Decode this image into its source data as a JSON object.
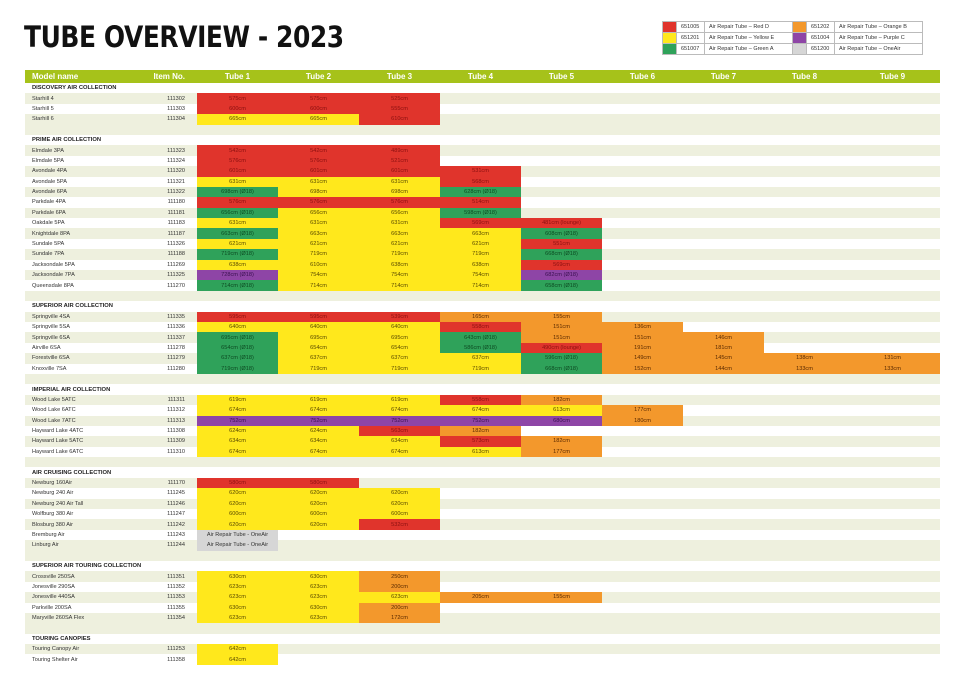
{
  "title": "TUBE OVERVIEW - 2023",
  "colors": {
    "R": "#e0342c",
    "Y": "#ffe81c",
    "G": "#2fa25a",
    "O": "#f3982c",
    "P": "#8e45a6",
    "A": "#d6d6d6"
  },
  "text_colors": {
    "R": "#8a1010",
    "Y": "#5a4a00",
    "G": "#0d4a22",
    "O": "#5a2a00",
    "P": "#3a1050",
    "A": "#333333"
  },
  "legend": [
    {
      "color": "R",
      "code": "651005",
      "label": "Air Repair Tube – Red D"
    },
    {
      "color": "O",
      "code": "651202",
      "label": "Air Repair Tube – Orange B"
    },
    {
      "color": "Y",
      "code": "651201",
      "label": "Air Repair Tube – Yellow E"
    },
    {
      "color": "P",
      "code": "651004",
      "label": "Air Repair Tube – Purple C"
    },
    {
      "color": "G",
      "code": "651007",
      "label": "Air Repair Tube – Green A"
    },
    {
      "color": "A",
      "code": "651200",
      "label": "Air Repair Tube – OneAir"
    }
  ],
  "header": {
    "model": "Model name",
    "item": "Item No.",
    "tubes": [
      "Tube 1",
      "Tube 2",
      "Tube 3",
      "Tube 4",
      "Tube 5",
      "Tube 6",
      "Tube 7",
      "Tube 8",
      "Tube 9"
    ]
  },
  "sections": [
    {
      "title": "DISCOVERY AIR COLLECTION",
      "rows": [
        {
          "name": "Starhill 4",
          "item": "111302",
          "tubes": [
            [
              "575cm",
              "R"
            ],
            [
              "575cm",
              "R"
            ],
            [
              "525cm",
              "R"
            ]
          ]
        },
        {
          "name": "Starhill 5",
          "item": "111303",
          "tubes": [
            [
              "600cm",
              "R"
            ],
            [
              "600cm",
              "R"
            ],
            [
              "555cm",
              "R"
            ]
          ]
        },
        {
          "name": "Starhill 6",
          "item": "111304",
          "tubes": [
            [
              "665cm",
              "Y"
            ],
            [
              "665cm",
              "Y"
            ],
            [
              "610cm",
              "R"
            ]
          ]
        }
      ]
    },
    {
      "title": "PRIME AIR COLLECTION",
      "rows": [
        {
          "name": "Elmdale 3PA",
          "item": "111323",
          "tubes": [
            [
              "542cm",
              "R"
            ],
            [
              "542cm",
              "R"
            ],
            [
              "489cm",
              "R"
            ]
          ]
        },
        {
          "name": "Elmdale 5PA",
          "item": "111324",
          "tubes": [
            [
              "576cm",
              "R"
            ],
            [
              "576cm",
              "R"
            ],
            [
              "521cm",
              "R"
            ]
          ]
        },
        {
          "name": "Avondale 4PA",
          "item": "111320",
          "tubes": [
            [
              "601cm",
              "R"
            ],
            [
              "601cm",
              "R"
            ],
            [
              "601cm",
              "R"
            ],
            [
              "531cm",
              "R"
            ]
          ]
        },
        {
          "name": "Avondale 5PA",
          "item": "111321",
          "tubes": [
            [
              "631cm",
              "Y"
            ],
            [
              "631cm",
              "Y"
            ],
            [
              "631cm",
              "Y"
            ],
            [
              "568cm",
              "R"
            ]
          ]
        },
        {
          "name": "Avondale 6PA",
          "item": "111322",
          "tubes": [
            [
              "698cm (Ø18)",
              "G"
            ],
            [
              "698cm",
              "Y"
            ],
            [
              "698cm",
              "Y"
            ],
            [
              "628cm (Ø18)",
              "G"
            ]
          ]
        },
        {
          "name": "Parkdale 4PA",
          "item": "111180",
          "tubes": [
            [
              "576cm",
              "R"
            ],
            [
              "576cm",
              "R"
            ],
            [
              "576cm",
              "R"
            ],
            [
              "514cm",
              "R"
            ]
          ]
        },
        {
          "name": "Parkdale 6PA",
          "item": "111181",
          "tubes": [
            [
              "656cm (Ø18)",
              "G"
            ],
            [
              "656cm",
              "Y"
            ],
            [
              "656cm",
              "Y"
            ],
            [
              "598cm (Ø18)",
              "G"
            ]
          ]
        },
        {
          "name": "Oakdale 5PA",
          "item": "111183",
          "tubes": [
            [
              "631cm",
              "Y"
            ],
            [
              "631cm",
              "Y"
            ],
            [
              "631cm",
              "Y"
            ],
            [
              "569cm",
              "R"
            ],
            [
              "481cm (lounge)",
              "R"
            ]
          ]
        },
        {
          "name": "Knightdale 8PA",
          "item": "111187",
          "tubes": [
            [
              "663cm (Ø18)",
              "G"
            ],
            [
              "663cm",
              "Y"
            ],
            [
              "663cm",
              "Y"
            ],
            [
              "663cm",
              "Y"
            ],
            [
              "608cm (Ø18)",
              "G"
            ]
          ]
        },
        {
          "name": "Sundale 5PA",
          "item": "111326",
          "tubes": [
            [
              "621cm",
              "Y"
            ],
            [
              "621cm",
              "Y"
            ],
            [
              "621cm",
              "Y"
            ],
            [
              "621cm",
              "Y"
            ],
            [
              "551cm",
              "R"
            ]
          ]
        },
        {
          "name": "Sundale 7PA",
          "item": "111188",
          "tubes": [
            [
              "719cm (Ø18)",
              "G"
            ],
            [
              "719cm",
              "Y"
            ],
            [
              "719cm",
              "Y"
            ],
            [
              "719cm",
              "Y"
            ],
            [
              "668cm (Ø18)",
              "G"
            ]
          ]
        },
        {
          "name": "Jacksondale 5PA",
          "item": "111269",
          "tubes": [
            [
              "638cm",
              "Y"
            ],
            [
              "610cm",
              "Y"
            ],
            [
              "638cm",
              "Y"
            ],
            [
              "638cm",
              "Y"
            ],
            [
              "569cm",
              "R"
            ]
          ]
        },
        {
          "name": "Jacksondale 7PA",
          "item": "111325",
          "tubes": [
            [
              "728cm (Ø18)",
              "P"
            ],
            [
              "754cm",
              "Y"
            ],
            [
              "754cm",
              "Y"
            ],
            [
              "754cm",
              "Y"
            ],
            [
              "682cm (Ø18)",
              "P"
            ]
          ]
        },
        {
          "name": "Queensdale 8PA",
          "item": "111270",
          "tubes": [
            [
              "714cm (Ø18)",
              "G"
            ],
            [
              "714cm",
              "Y"
            ],
            [
              "714cm",
              "Y"
            ],
            [
              "714cm",
              "Y"
            ],
            [
              "658cm (Ø18)",
              "G"
            ]
          ]
        }
      ]
    },
    {
      "title": "SUPERIOR AIR COLLECTION",
      "rows": [
        {
          "name": "Springville 4SA",
          "item": "111335",
          "tubes": [
            [
              "595cm",
              "R"
            ],
            [
              "595cm",
              "R"
            ],
            [
              "539cm",
              "R"
            ],
            [
              "165cm",
              "O"
            ],
            [
              "155cm",
              "O"
            ]
          ]
        },
        {
          "name": "Springville 5SA",
          "item": "111336",
          "tubes": [
            [
              "640cm",
              "Y"
            ],
            [
              "640cm",
              "Y"
            ],
            [
              "640cm",
              "Y"
            ],
            [
              "558cm",
              "R"
            ],
            [
              "151cm",
              "O"
            ],
            [
              "136cm",
              "O"
            ]
          ]
        },
        {
          "name": "Springville 6SA",
          "item": "111337",
          "tubes": [
            [
              "695cm (Ø18)",
              "G"
            ],
            [
              "695cm",
              "Y"
            ],
            [
              "695cm",
              "Y"
            ],
            [
              "643cm (Ø18)",
              "G"
            ],
            [
              "151cm",
              "O"
            ],
            [
              "151cm",
              "O"
            ],
            [
              "146cm",
              "O"
            ]
          ]
        },
        {
          "name": "Airville 6SA",
          "item": "111278",
          "tubes": [
            [
              "654cm (Ø18)",
              "G"
            ],
            [
              "654cm",
              "Y"
            ],
            [
              "654cm",
              "Y"
            ],
            [
              "586cm (Ø18)",
              "G"
            ],
            [
              "490cm (lounge)",
              "R"
            ],
            [
              "191cm",
              "O"
            ],
            [
              "181cm",
              "O"
            ]
          ]
        },
        {
          "name": "Forestville 6SA",
          "item": "111279",
          "tubes": [
            [
              "637cm (Ø18)",
              "G"
            ],
            [
              "637cm",
              "Y"
            ],
            [
              "637cm",
              "Y"
            ],
            [
              "637cm",
              "Y"
            ],
            [
              "596cm (Ø18)",
              "G"
            ],
            [
              "149cm",
              "O"
            ],
            [
              "145cm",
              "O"
            ],
            [
              "138cm",
              "O"
            ],
            [
              "131cm",
              "O"
            ]
          ]
        },
        {
          "name": "Knoxville 7SA",
          "item": "111280",
          "tubes": [
            [
              "719cm (Ø18)",
              "G"
            ],
            [
              "719cm",
              "Y"
            ],
            [
              "719cm",
              "Y"
            ],
            [
              "719cm",
              "Y"
            ],
            [
              "668cm (Ø18)",
              "G"
            ],
            [
              "152cm",
              "O"
            ],
            [
              "144cm",
              "O"
            ],
            [
              "133cm",
              "O"
            ],
            [
              "133cm",
              "O"
            ]
          ]
        }
      ]
    },
    {
      "title": "IMPERIAL AIR COLLECTION",
      "rows": [
        {
          "name": "Wood Lake 5ATC",
          "item": "111311",
          "tubes": [
            [
              "619cm",
              "Y"
            ],
            [
              "619cm",
              "Y"
            ],
            [
              "619cm",
              "Y"
            ],
            [
              "558cm",
              "R"
            ],
            [
              "182cm",
              "O"
            ]
          ]
        },
        {
          "name": "Wood Lake 6ATC",
          "item": "111312",
          "tubes": [
            [
              "674cm",
              "Y"
            ],
            [
              "674cm",
              "Y"
            ],
            [
              "674cm",
              "Y"
            ],
            [
              "674cm",
              "Y"
            ],
            [
              "613cm",
              "Y"
            ],
            [
              "177cm",
              "O"
            ]
          ]
        },
        {
          "name": "Wood Lake 7ATC",
          "item": "111313",
          "tubes": [
            [
              "752cm",
              "P"
            ],
            [
              "752cm",
              "P"
            ],
            [
              "752cm",
              "P"
            ],
            [
              "752cm",
              "P"
            ],
            [
              "680cm",
              "P"
            ],
            [
              "180cm",
              "O"
            ]
          ]
        },
        {
          "name": "Hayward Lake 4ATC",
          "item": "111308",
          "tubes": [
            [
              "624cm",
              "Y"
            ],
            [
              "624cm",
              "Y"
            ],
            [
              "563cm",
              "R"
            ],
            [
              "182cm",
              "O"
            ]
          ]
        },
        {
          "name": "Hayward Lake 5ATC",
          "item": "111309",
          "tubes": [
            [
              "634cm",
              "Y"
            ],
            [
              "634cm",
              "Y"
            ],
            [
              "634cm",
              "Y"
            ],
            [
              "573cm",
              "R"
            ],
            [
              "182cm",
              "O"
            ]
          ]
        },
        {
          "name": "Hayward Lake 6ATC",
          "item": "111310",
          "tubes": [
            [
              "674cm",
              "Y"
            ],
            [
              "674cm",
              "Y"
            ],
            [
              "674cm",
              "Y"
            ],
            [
              "613cm",
              "Y"
            ],
            [
              "177cm",
              "O"
            ]
          ]
        }
      ]
    },
    {
      "title": "AIR CRUISING COLLECTION",
      "rows": [
        {
          "name": "Newburg 160Air",
          "item": "111170",
          "tubes": [
            [
              "580cm",
              "R"
            ],
            [
              "580cm",
              "R"
            ]
          ]
        },
        {
          "name": "Newburg 240 Air",
          "item": "111245",
          "tubes": [
            [
              "620cm",
              "Y"
            ],
            [
              "620cm",
              "Y"
            ],
            [
              "620cm",
              "Y"
            ]
          ]
        },
        {
          "name": "Newburg 240 Air Tall",
          "item": "111246",
          "tubes": [
            [
              "620cm",
              "Y"
            ],
            [
              "620cm",
              "Y"
            ],
            [
              "620cm",
              "Y"
            ]
          ]
        },
        {
          "name": "Wolfburg 380 Air",
          "item": "111247",
          "tubes": [
            [
              "600cm",
              "Y"
            ],
            [
              "600cm",
              "Y"
            ],
            [
              "600cm",
              "Y"
            ]
          ]
        },
        {
          "name": "Blosburg 380 Air",
          "item": "111242",
          "tubes": [
            [
              "620cm",
              "Y"
            ],
            [
              "620cm",
              "Y"
            ],
            [
              "532cm",
              "R"
            ]
          ]
        },
        {
          "name": "Bremburg Air",
          "item": "111243",
          "tubes": [
            [
              "Air Repair Tube - OneAir",
              "A"
            ]
          ]
        },
        {
          "name": "Linburg Air",
          "item": "111244",
          "tubes": [
            [
              "Air Repair Tube - OneAir",
              "A"
            ]
          ]
        }
      ]
    },
    {
      "title": "SUPERIOR AIR TOURING COLLECTION",
      "rows": [
        {
          "name": "Crossville 250SA",
          "item": "111351",
          "tubes": [
            [
              "630cm",
              "Y"
            ],
            [
              "630cm",
              "Y"
            ],
            [
              "250cm",
              "O"
            ]
          ]
        },
        {
          "name": "Jonesville 290SA",
          "item": "111352",
          "tubes": [
            [
              "623cm",
              "Y"
            ],
            [
              "623cm",
              "Y"
            ],
            [
              "200cm",
              "O"
            ]
          ]
        },
        {
          "name": "Jonesville 440SA",
          "item": "111353",
          "tubes": [
            [
              "623cm",
              "Y"
            ],
            [
              "623cm",
              "Y"
            ],
            [
              "623cm",
              "Y"
            ],
            [
              "205cm",
              "O"
            ],
            [
              "155cm",
              "O"
            ]
          ]
        },
        {
          "name": "Parkville 200SA",
          "item": "111355",
          "tubes": [
            [
              "630cm",
              "Y"
            ],
            [
              "630cm",
              "Y"
            ],
            [
              "200cm",
              "O"
            ]
          ]
        },
        {
          "name": "Maryville 260SA Flex",
          "item": "111354",
          "tubes": [
            [
              "623cm",
              "Y"
            ],
            [
              "623cm",
              "Y"
            ],
            [
              "172cm",
              "O"
            ]
          ]
        }
      ]
    },
    {
      "title": "TOURING CANOPIES",
      "rows": [
        {
          "name": "Touring Canopy Air",
          "item": "111253",
          "tubes": [
            [
              "642cm",
              "Y"
            ]
          ]
        },
        {
          "name": "Touring Shelter Air",
          "item": "111358",
          "tubes": [
            [
              "642cm",
              "Y"
            ]
          ]
        }
      ]
    }
  ]
}
